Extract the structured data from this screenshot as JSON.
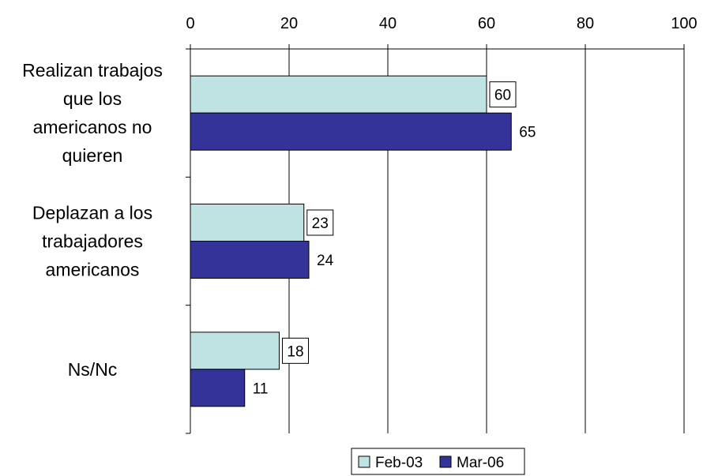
{
  "chart_data": {
    "type": "bar",
    "orientation": "horizontal",
    "categories": [
      [
        "Realizan trabajos",
        "que los",
        "americanos no",
        "quieren"
      ],
      [
        "Deplazan a los",
        "trabajadores",
        "americanos"
      ],
      [
        "Ns/Nc"
      ]
    ],
    "series": [
      {
        "name": "Feb-03",
        "values": [
          60,
          23,
          18
        ],
        "color": "#bfe3e3",
        "label_boxed": true
      },
      {
        "name": "Mar-06",
        "values": [
          65,
          24,
          11
        ],
        "color": "#333399",
        "label_boxed": false
      }
    ],
    "xlim": [
      0,
      100
    ],
    "xticks": [
      0,
      20,
      40,
      60,
      80,
      100
    ],
    "x_axis_position": "top",
    "grid": true,
    "legend_position": "bottom-center",
    "title": "",
    "xlabel": "",
    "ylabel": ""
  }
}
